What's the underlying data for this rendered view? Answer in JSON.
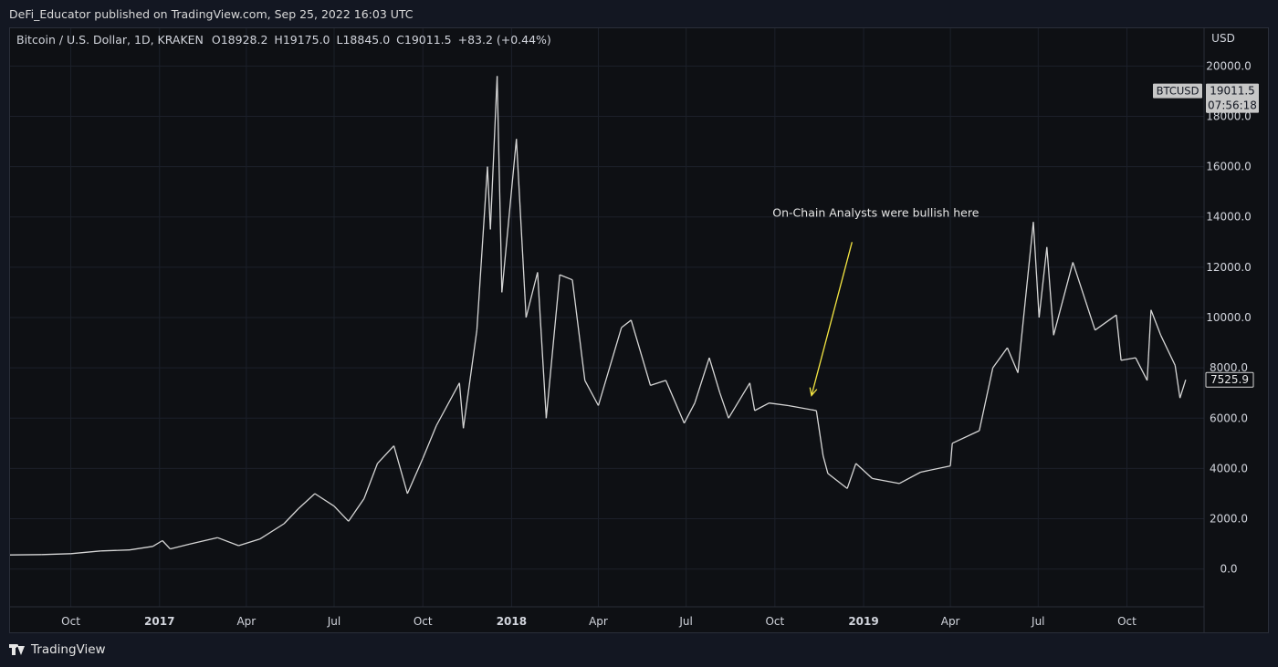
{
  "header": {
    "publisher": "DeFi_Educator published on TradingView.com, Sep 25, 2022 16:03 UTC"
  },
  "legend": {
    "symbol_line": "Bitcoin / U.S. Dollar, 1D, KRAKEN",
    "open": "O18928.2",
    "high": "H19175.0",
    "low": "L18845.0",
    "close": "C19011.5",
    "change": "+83.2 (+0.44%)"
  },
  "footer": {
    "brand": "TradingView"
  },
  "chart_data": {
    "type": "line",
    "ylabel": "USD",
    "ylim": [
      -1500,
      21500
    ],
    "y_ticks": [
      0,
      2000,
      4000,
      6000,
      8000,
      10000,
      12000,
      14000,
      16000,
      18000,
      20000
    ],
    "y_tick_labels": [
      "0.0",
      "2000.0",
      "4000.0",
      "6000.0",
      "8000.0",
      "10000.0",
      "12000.0",
      "14000.0",
      "16000.0",
      "18000.0",
      "20000.0"
    ],
    "xlim": [
      "2016-07-30",
      "2019-12-20"
    ],
    "x_ticks": [
      {
        "date": "2016-10-01",
        "label": "Oct",
        "bold": false
      },
      {
        "date": "2017-01-01",
        "label": "2017",
        "bold": true
      },
      {
        "date": "2017-04-01",
        "label": "Apr",
        "bold": false
      },
      {
        "date": "2017-07-01",
        "label": "Jul",
        "bold": false
      },
      {
        "date": "2017-10-01",
        "label": "Oct",
        "bold": false
      },
      {
        "date": "2018-01-01",
        "label": "2018",
        "bold": true
      },
      {
        "date": "2018-04-01",
        "label": "Apr",
        "bold": false
      },
      {
        "date": "2018-07-01",
        "label": "Jul",
        "bold": false
      },
      {
        "date": "2018-10-01",
        "label": "Oct",
        "bold": false
      },
      {
        "date": "2019-01-01",
        "label": "2019",
        "bold": true
      },
      {
        "date": "2019-04-01",
        "label": "Apr",
        "bold": false
      },
      {
        "date": "2019-07-01",
        "label": "Jul",
        "bold": false
      },
      {
        "date": "2019-10-01",
        "label": "Oct",
        "bold": false
      }
    ],
    "grid": true,
    "series": [
      {
        "color": "#d6d6d6",
        "points": [
          {
            "x": "2016-07-30",
            "y": 560
          },
          {
            "x": "2016-09-01",
            "y": 575
          },
          {
            "x": "2016-10-01",
            "y": 610
          },
          {
            "x": "2016-11-01",
            "y": 720
          },
          {
            "x": "2016-12-01",
            "y": 760
          },
          {
            "x": "2016-12-25",
            "y": 900
          },
          {
            "x": "2017-01-04",
            "y": 1130
          },
          {
            "x": "2017-01-12",
            "y": 800
          },
          {
            "x": "2017-02-01",
            "y": 990
          },
          {
            "x": "2017-03-02",
            "y": 1250
          },
          {
            "x": "2017-03-24",
            "y": 930
          },
          {
            "x": "2017-04-15",
            "y": 1190
          },
          {
            "x": "2017-05-10",
            "y": 1800
          },
          {
            "x": "2017-05-25",
            "y": 2400
          },
          {
            "x": "2017-06-11",
            "y": 3000
          },
          {
            "x": "2017-07-01",
            "y": 2500
          },
          {
            "x": "2017-07-16",
            "y": 1900
          },
          {
            "x": "2017-08-01",
            "y": 2800
          },
          {
            "x": "2017-08-15",
            "y": 4200
          },
          {
            "x": "2017-09-01",
            "y": 4900
          },
          {
            "x": "2017-09-15",
            "y": 3000
          },
          {
            "x": "2017-10-01",
            "y": 4400
          },
          {
            "x": "2017-10-15",
            "y": 5700
          },
          {
            "x": "2017-11-08",
            "y": 7400
          },
          {
            "x": "2017-11-12",
            "y": 5600
          },
          {
            "x": "2017-11-26",
            "y": 9500
          },
          {
            "x": "2017-12-07",
            "y": 16000
          },
          {
            "x": "2017-12-10",
            "y": 13500
          },
          {
            "x": "2017-12-17",
            "y": 19600
          },
          {
            "x": "2017-12-22",
            "y": 11000
          },
          {
            "x": "2018-01-06",
            "y": 17100
          },
          {
            "x": "2018-01-16",
            "y": 10000
          },
          {
            "x": "2018-01-28",
            "y": 11800
          },
          {
            "x": "2018-02-06",
            "y": 6000
          },
          {
            "x": "2018-02-20",
            "y": 11700
          },
          {
            "x": "2018-03-05",
            "y": 11500
          },
          {
            "x": "2018-03-18",
            "y": 7500
          },
          {
            "x": "2018-04-01",
            "y": 6500
          },
          {
            "x": "2018-04-25",
            "y": 9600
          },
          {
            "x": "2018-05-05",
            "y": 9900
          },
          {
            "x": "2018-05-25",
            "y": 7300
          },
          {
            "x": "2018-06-10",
            "y": 7500
          },
          {
            "x": "2018-06-29",
            "y": 5800
          },
          {
            "x": "2018-07-10",
            "y": 6600
          },
          {
            "x": "2018-07-25",
            "y": 8400
          },
          {
            "x": "2018-08-05",
            "y": 7000
          },
          {
            "x": "2018-08-14",
            "y": 6000
          },
          {
            "x": "2018-09-05",
            "y": 7400
          },
          {
            "x": "2018-09-10",
            "y": 6300
          },
          {
            "x": "2018-09-25",
            "y": 6600
          },
          {
            "x": "2018-10-15",
            "y": 6500
          },
          {
            "x": "2018-11-13",
            "y": 6300
          },
          {
            "x": "2018-11-20",
            "y": 4500
          },
          {
            "x": "2018-11-25",
            "y": 3800
          },
          {
            "x": "2018-12-15",
            "y": 3200
          },
          {
            "x": "2018-12-24",
            "y": 4200
          },
          {
            "x": "2019-01-10",
            "y": 3600
          },
          {
            "x": "2019-02-07",
            "y": 3400
          },
          {
            "x": "2019-03-01",
            "y": 3850
          },
          {
            "x": "2019-04-01",
            "y": 4100
          },
          {
            "x": "2019-04-03",
            "y": 5000
          },
          {
            "x": "2019-05-01",
            "y": 5500
          },
          {
            "x": "2019-05-15",
            "y": 8000
          },
          {
            "x": "2019-05-30",
            "y": 8800
          },
          {
            "x": "2019-06-10",
            "y": 7800
          },
          {
            "x": "2019-06-26",
            "y": 13800
          },
          {
            "x": "2019-07-02",
            "y": 10000
          },
          {
            "x": "2019-07-10",
            "y": 12800
          },
          {
            "x": "2019-07-17",
            "y": 9300
          },
          {
            "x": "2019-08-06",
            "y": 12200
          },
          {
            "x": "2019-08-29",
            "y": 9500
          },
          {
            "x": "2019-09-20",
            "y": 10100
          },
          {
            "x": "2019-09-25",
            "y": 8300
          },
          {
            "x": "2019-10-10",
            "y": 8400
          },
          {
            "x": "2019-10-22",
            "y": 7500
          },
          {
            "x": "2019-10-26",
            "y": 10300
          },
          {
            "x": "2019-11-05",
            "y": 9300
          },
          {
            "x": "2019-11-20",
            "y": 8100
          },
          {
            "x": "2019-11-25",
            "y": 6800
          },
          {
            "x": "2019-12-01",
            "y": 7525.9
          }
        ]
      }
    ],
    "price_labels": [
      {
        "symbol": "BTCUSD",
        "value": "19011.5",
        "countdown": "07:56:18",
        "y": 19011.5
      },
      {
        "value": "7525.9",
        "y": 7525.9
      }
    ],
    "annotations": [
      {
        "text": "On-Chain Analysts were bullish here",
        "arrow_color": "#f5e642",
        "arrow_from": {
          "x": "2018-12-20",
          "y": 13000
        },
        "arrow_to": {
          "x": "2018-11-08",
          "y": 6900
        }
      }
    ]
  }
}
